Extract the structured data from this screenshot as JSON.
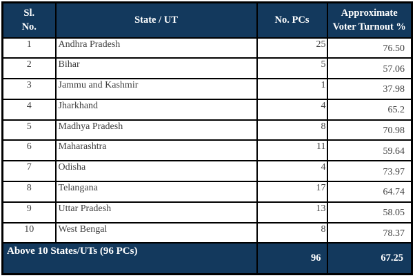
{
  "table": {
    "headers": {
      "sl_no": "Sl.\nNo.",
      "state": "State / UT",
      "pcs": "No. PCs",
      "turnout": "Approximate\nVoter Turnout %"
    },
    "rows": [
      {
        "sl": "1",
        "state": "Andhra Pradesh",
        "pcs": "25",
        "turnout": "76.50"
      },
      {
        "sl": "2",
        "state": "Bihar",
        "pcs": "5",
        "turnout": "57.06"
      },
      {
        "sl": "3",
        "state": "Jammu and Kashmir",
        "pcs": "1",
        "turnout": "37.98"
      },
      {
        "sl": "4",
        "state": "Jharkhand",
        "pcs": "4",
        "turnout": "65.2"
      },
      {
        "sl": "5",
        "state": "Madhya Pradesh",
        "pcs": "8",
        "turnout": "70.98"
      },
      {
        "sl": "6",
        "state": "Maharashtra",
        "pcs": "11",
        "turnout": "59.64"
      },
      {
        "sl": "7",
        "state": "Odisha",
        "pcs": "4",
        "turnout": "73.97"
      },
      {
        "sl": "8",
        "state": "Telangana",
        "pcs": "17",
        "turnout": "64.74"
      },
      {
        "sl": "9",
        "state": "Uttar Pradesh",
        "pcs": "13",
        "turnout": "58.05"
      },
      {
        "sl": "10",
        "state": "West Bengal",
        "pcs": "8",
        "turnout": "78.37"
      }
    ],
    "footer": {
      "label": "Above 10 States/UTs (96 PCs)",
      "pcs": "96",
      "turnout": "67.25"
    },
    "colors": {
      "header_bg": "#13395d",
      "header_text": "#ffffff",
      "border": "#000000",
      "body_text": "#3f3f3f",
      "row_bg": "#ffffff"
    }
  }
}
